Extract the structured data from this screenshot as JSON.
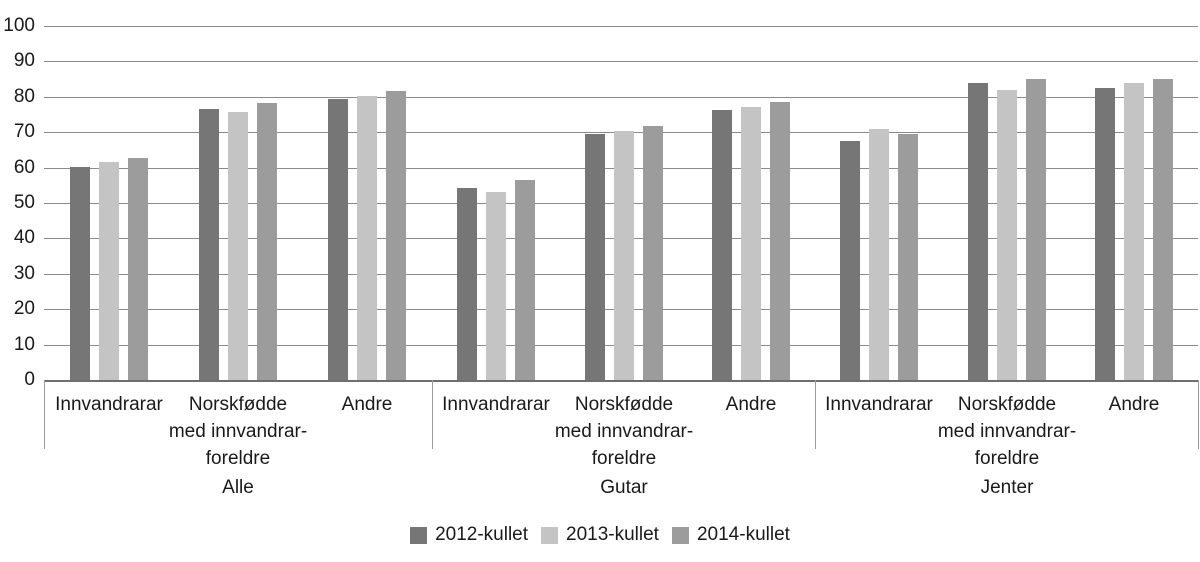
{
  "chart_data": {
    "type": "bar",
    "title": "",
    "ylim": [
      0,
      100
    ],
    "yticks": [
      0,
      10,
      20,
      30,
      40,
      50,
      60,
      70,
      80,
      90,
      100
    ],
    "grid": true,
    "legend_position": "bottom",
    "groups": [
      "Alle",
      "Gutar",
      "Jenter"
    ],
    "categories": [
      "Innvandrarar",
      "Norskfødde med innvandrar-foreldre",
      "Andre"
    ],
    "category_label_lines": [
      [
        "Innvandrarar"
      ],
      [
        "Norskfødde",
        "med innvandrar-",
        "foreldre"
      ],
      [
        "Andre"
      ]
    ],
    "series": [
      {
        "name": "2012-kullet",
        "color": "#767676",
        "values": {
          "Alle": [
            60.3,
            76.6,
            79.5
          ],
          "Gutar": [
            54.2,
            69.5,
            76.2
          ],
          "Jenter": [
            67.5,
            84.0,
            82.6
          ]
        }
      },
      {
        "name": "2013-kullet",
        "color": "#c4c4c4",
        "values": {
          "Alle": [
            61.6,
            75.8,
            80.2
          ],
          "Gutar": [
            53.2,
            70.2,
            77.0
          ],
          "Jenter": [
            70.8,
            81.8,
            83.8
          ]
        }
      },
      {
        "name": "2014-kullet",
        "color": "#9c9c9c",
        "values": {
          "Alle": [
            62.8,
            78.2,
            81.7
          ],
          "Gutar": [
            56.6,
            71.8,
            78.4
          ],
          "Jenter": [
            69.5,
            85.0,
            85.0
          ]
        }
      }
    ],
    "colors": {
      "gridline": "#8a8a8a",
      "axis": "#6e6e6e",
      "bracket": "#9a9a9a",
      "text": "#1a1a1a",
      "background": "#ffffff"
    }
  }
}
